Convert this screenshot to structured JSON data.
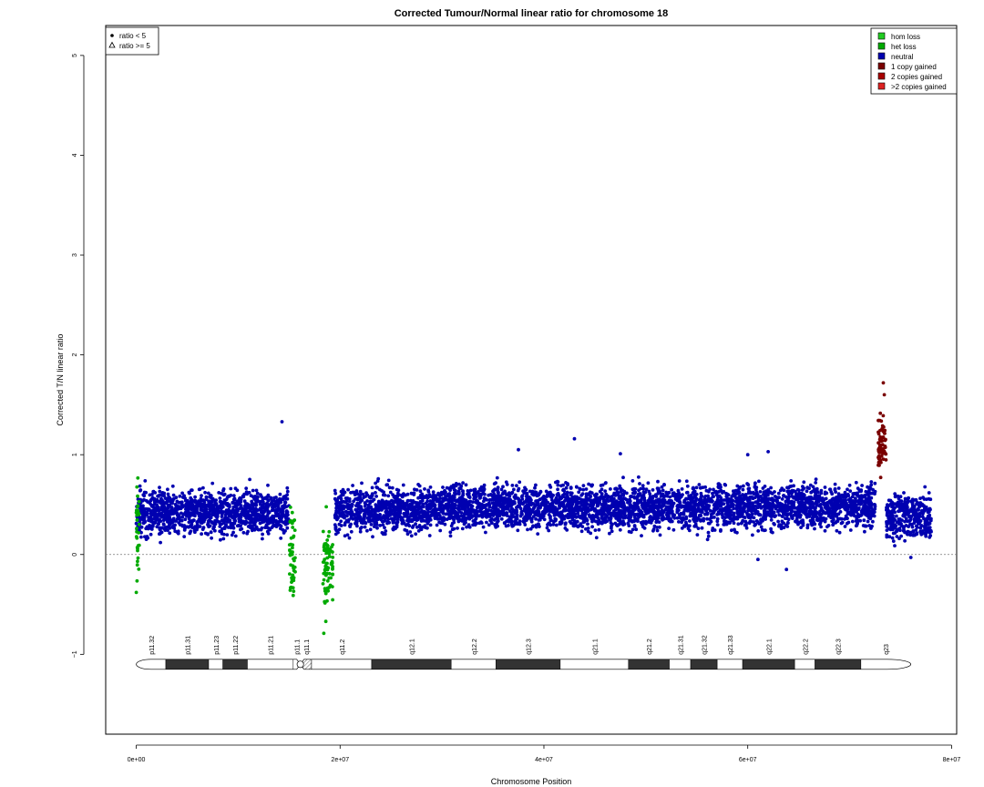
{
  "chart_data": {
    "type": "scatter",
    "title": "Corrected Tumour/Normal linear ratio for chromosome  18",
    "xlabel": "Chromosome Position",
    "ylabel": "Corrected T/N linear ratio",
    "xlim": [
      -3000000,
      80500000
    ],
    "ylim": [
      -1.8,
      5.3
    ],
    "x_ticks": [
      {
        "value": 0,
        "label": "0e+00"
      },
      {
        "value": 20000000,
        "label": "2e+07"
      },
      {
        "value": 40000000,
        "label": "4e+07"
      },
      {
        "value": 60000000,
        "label": "6e+07"
      },
      {
        "value": 80000000,
        "label": "8e+07"
      }
    ],
    "y_ticks": [
      {
        "value": -1,
        "label": "−1"
      },
      {
        "value": 0,
        "label": "0"
      },
      {
        "value": 1,
        "label": "1"
      },
      {
        "value": 2,
        "label": "2"
      },
      {
        "value": 3,
        "label": "3"
      },
      {
        "value": 4,
        "label": "4"
      },
      {
        "value": 5,
        "label": "5"
      }
    ],
    "reference_line_y": 0,
    "shape_legend": {
      "position": "top-left",
      "items": [
        {
          "symbol": "dot",
          "label": "ratio < 5"
        },
        {
          "symbol": "triangle",
          "label": "ratio >= 5"
        }
      ]
    },
    "color_legend": {
      "position": "top-right",
      "items": [
        {
          "label": "hom loss",
          "color": "#22cc22"
        },
        {
          "label": "het loss",
          "color": "#00aa00"
        },
        {
          "label": "neutral",
          "color": "#0000b0"
        },
        {
          "label": "1 copy gained",
          "color": "#7a0000"
        },
        {
          "label": "2 copies gained",
          "color": "#a80000"
        },
        {
          "label": ">2 copies gained",
          "color": "#dd2222"
        }
      ]
    },
    "series": [
      {
        "name": "neutral",
        "color": "#0000b0",
        "typical_y_range": [
          0.1,
          0.85
        ],
        "segments": [
          {
            "x_range": [
              0,
              15000000
            ],
            "center": 0.42
          },
          {
            "x_range": [
              19500000,
              30000000
            ],
            "center": 0.45
          },
          {
            "x_range": [
              30000000,
              72500000
            ],
            "center": 0.48
          },
          {
            "x_range": [
              73600000,
              78000000
            ],
            "center": 0.38
          }
        ],
        "outliers": [
          [
            14300000,
            1.33
          ],
          [
            43000000,
            1.16
          ],
          [
            37500000,
            1.05
          ],
          [
            62000000,
            1.03
          ],
          [
            47500000,
            1.01
          ],
          [
            60000000,
            1.0
          ],
          [
            63800000,
            -0.15
          ],
          [
            61000000,
            -0.05
          ],
          [
            76000000,
            -0.03
          ]
        ]
      },
      {
        "name": "het loss",
        "color": "#00aa00",
        "typical_y_range": [
          -0.8,
          0.8
        ],
        "segments": [
          {
            "x_range": [
              0,
              300000
            ],
            "center": 0.2
          },
          {
            "x_range": [
              15000000,
              15600000
            ],
            "center": 0.05
          },
          {
            "x_range": [
              18300000,
              19300000
            ],
            "center": -0.1
          }
        ],
        "outliers": [
          [
            0,
            -0.38
          ],
          [
            15400000,
            -0.41
          ],
          [
            18400000,
            -0.79
          ],
          [
            18600000,
            -0.67
          ]
        ]
      },
      {
        "name": "1 copy gained",
        "color": "#7a0000",
        "typical_y_range": [
          0.8,
          1.72
        ],
        "segments": [
          {
            "x_range": [
              72800000,
              73600000
            ],
            "center": 1.1
          }
        ],
        "outliers": [
          [
            73300000,
            1.72
          ],
          [
            73400000,
            1.6
          ]
        ]
      }
    ],
    "ideogram": {
      "y": -1.1,
      "chromosome_length": 76000000,
      "bands": [
        {
          "name": "p11.32",
          "start": 0,
          "end": 2900000,
          "stain": "gneg"
        },
        {
          "name": "p11.31",
          "start": 2900000,
          "end": 7100000,
          "stain": "gpos"
        },
        {
          "name": "p11.23",
          "start": 7100000,
          "end": 8500000,
          "stain": "gneg"
        },
        {
          "name": "p11.22",
          "start": 8500000,
          "end": 10900000,
          "stain": "gpos"
        },
        {
          "name": "p11.21",
          "start": 10900000,
          "end": 15400000,
          "stain": "gneg"
        },
        {
          "name": "p11.1",
          "start": 15400000,
          "end": 16100000,
          "stain": "acen"
        },
        {
          "name": "q11.1",
          "start": 16100000,
          "end": 17200000,
          "stain": "stalk"
        },
        {
          "name": "q11.2",
          "start": 17200000,
          "end": 23100000,
          "stain": "gneg"
        },
        {
          "name": "q12.1",
          "start": 23100000,
          "end": 30900000,
          "stain": "gpos"
        },
        {
          "name": "q12.2",
          "start": 30900000,
          "end": 35300000,
          "stain": "gneg"
        },
        {
          "name": "q12.3",
          "start": 35300000,
          "end": 41600000,
          "stain": "gpos"
        },
        {
          "name": "q21.1",
          "start": 41600000,
          "end": 48300000,
          "stain": "gneg"
        },
        {
          "name": "q21.2",
          "start": 48300000,
          "end": 52300000,
          "stain": "gpos"
        },
        {
          "name": "q21.31",
          "start": 52300000,
          "end": 54400000,
          "stain": "gneg"
        },
        {
          "name": "q21.32",
          "start": 54400000,
          "end": 57000000,
          "stain": "gpos"
        },
        {
          "name": "q21.33",
          "start": 57000000,
          "end": 59500000,
          "stain": "gneg"
        },
        {
          "name": "q22.1",
          "start": 59500000,
          "end": 64600000,
          "stain": "gpos"
        },
        {
          "name": "q22.2",
          "start": 64600000,
          "end": 66600000,
          "stain": "gneg"
        },
        {
          "name": "q22.3",
          "start": 66600000,
          "end": 71100000,
          "stain": "gpos"
        },
        {
          "name": "q23",
          "start": 71100000,
          "end": 76000000,
          "stain": "gneg"
        }
      ]
    }
  }
}
